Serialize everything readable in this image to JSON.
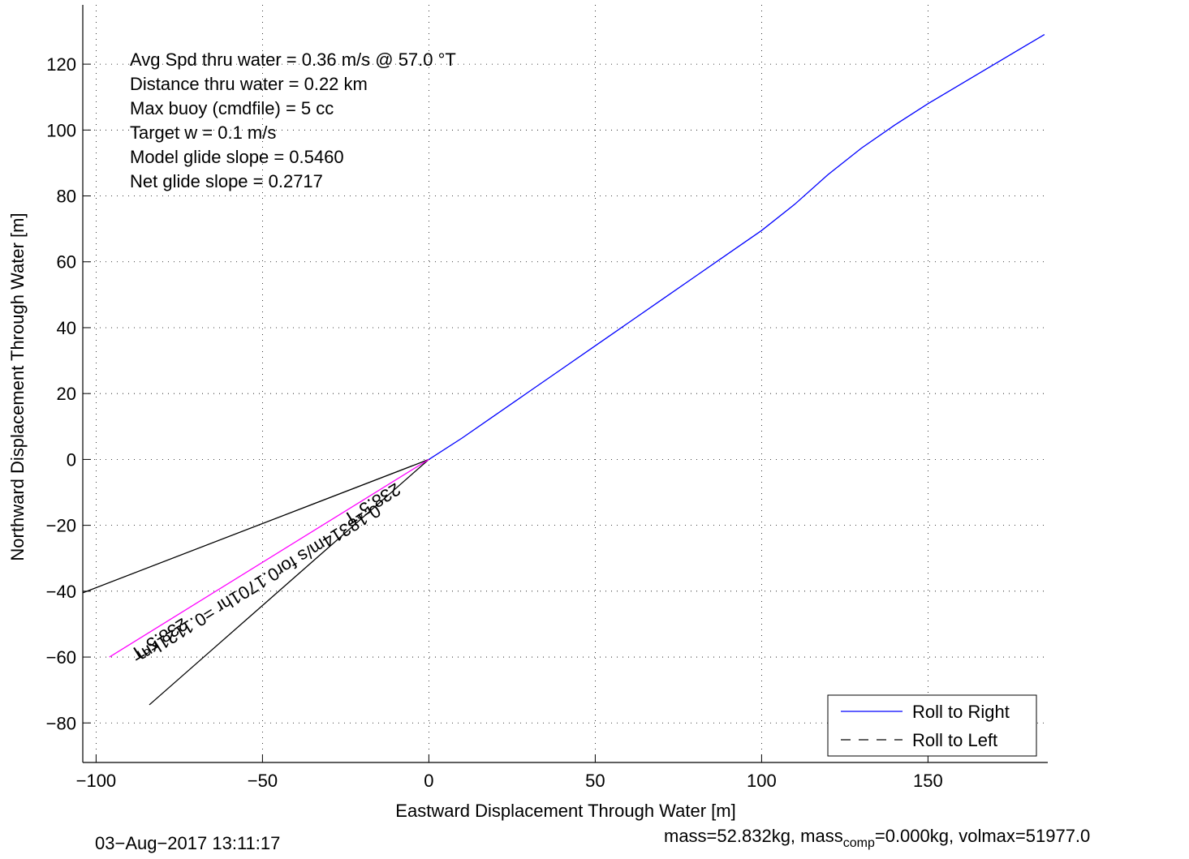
{
  "chart_data": {
    "type": "line",
    "xlabel": "Eastward Displacement Through Water [m]",
    "ylabel": "Northward Displacement Through Water [m]",
    "xlim": [
      -104,
      186
    ],
    "ylim": [
      -92,
      138
    ],
    "x_ticks": [
      -100,
      -50,
      0,
      50,
      100,
      150
    ],
    "y_ticks": [
      -80,
      -60,
      -40,
      -20,
      0,
      20,
      40,
      60,
      80,
      100,
      120
    ],
    "x_tick_labels": [
      "−100",
      "−50",
      "0",
      "50",
      "100",
      "150"
    ],
    "y_tick_labels": [
      "−80",
      "−60",
      "−40",
      "−20",
      "0",
      "20",
      "40",
      "60",
      "80",
      "100",
      "120"
    ],
    "grid": true,
    "legend_position": "bottom-right",
    "colors": {
      "roll_right": "#0000ff",
      "roll_left": "#000000",
      "current": "#ff00ff"
    },
    "series": [
      {
        "name": "Roll to Right",
        "style": "solid",
        "x": [
          0,
          10,
          20,
          30,
          40,
          50,
          60,
          70,
          80,
          90,
          100,
          110,
          120,
          130,
          140,
          150,
          160,
          170,
          180,
          185
        ],
        "y": [
          0,
          6.5,
          13.5,
          20.5,
          27.5,
          34.5,
          41.5,
          48.5,
          55.5,
          62.5,
          69.5,
          77.5,
          86.5,
          94.5,
          101.5,
          108,
          114,
          120,
          126,
          129
        ]
      },
      {
        "name": "Roll to Left",
        "style": "dashed",
        "x": [],
        "y": []
      }
    ],
    "extra_lines": [
      {
        "x": [
          0,
          -104
        ],
        "y": [
          0,
          -40.5
        ],
        "color": "#000000"
      },
      {
        "x": [
          0,
          -84
        ],
        "y": [
          0,
          -74.5
        ],
        "color": "#000000"
      },
      {
        "x": [
          0,
          -96
        ],
        "y": [
          0,
          -60
        ],
        "color": "#ff00ff"
      }
    ],
    "annotations": [
      "Avg Spd thru water =  0.36 m/s @  57.0   °T",
      "Distance thru water =  0.22 km",
      "Max buoy (cmdfile) = 5 cc",
      "Target w = 0.1 m/s",
      "Model glide slope = 0.5460",
      "Net glide slope = 0.2717"
    ],
    "rotated_labels": [
      {
        "text": "238.5°T",
        "x": -18,
        "y": -12
      },
      {
        "text": "0.18314m/s for0.1701hr =0.1121km",
        "x": -52,
        "y": -36
      },
      {
        "text": "238.5°T",
        "x": -82,
        "y": -53
      }
    ]
  },
  "footer": {
    "timestamp": "03−Aug−2017 13:11:17",
    "mass_prefix": "mass=52.832kg, mass",
    "mass_sub": "comp",
    "mass_suffix": "=0.000kg, volmax=51977.0"
  }
}
